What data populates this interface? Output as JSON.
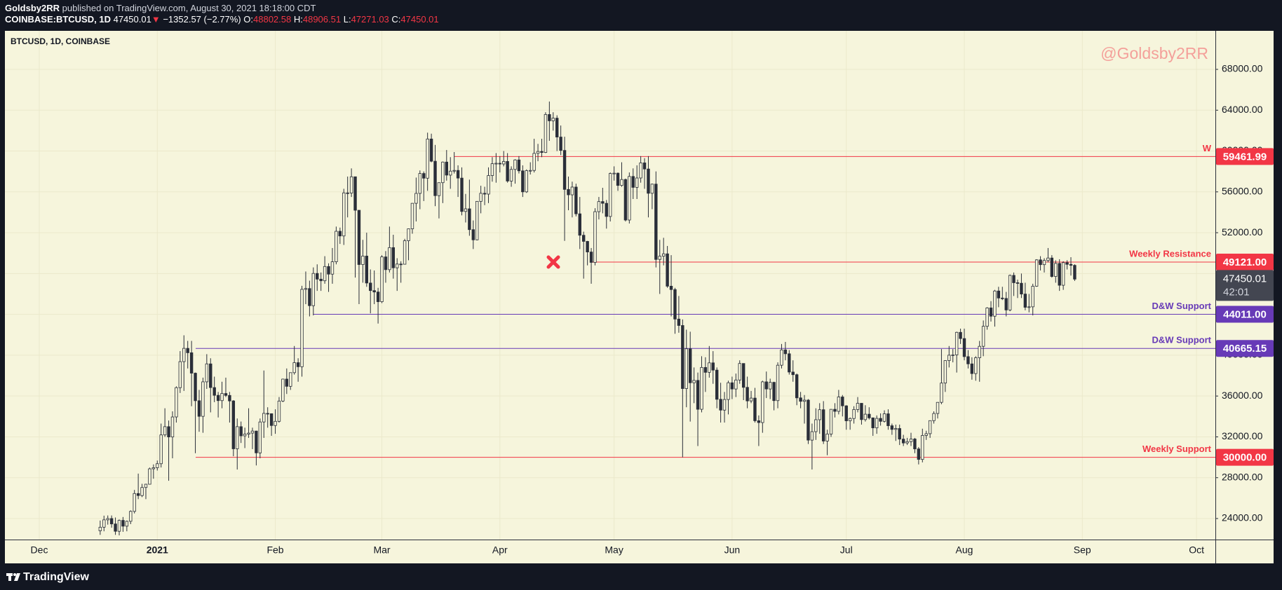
{
  "header": {
    "author": "Goldsby2RR",
    "published": "published on TradingView.com, August 30, 2021 18:18:00 CDT",
    "symbol": "COINBASE:BTCUSD, 1D",
    "last": "47450.01",
    "arrow": "▼",
    "change": "−1352.57 (−2.77%)",
    "ohlc": [
      {
        "key": "O:",
        "value": "48802.58"
      },
      {
        "key": "H:",
        "value": "48906.51"
      },
      {
        "key": "L:",
        "value": "47271.03"
      },
      {
        "key": "C:",
        "value": "47450.01"
      }
    ]
  },
  "footer": {
    "brand": "TradingView"
  },
  "chart_data": {
    "type": "candlestick",
    "legend": "BTCUSD, 1D, COINBASE",
    "watermark": "@Goldsby2RR",
    "countdown": "42:01",
    "up_color": "#f6f5dc",
    "down_color": "#2a2e39",
    "wick_color": "#2a2e39",
    "grid": true,
    "ylim": [
      21940,
      71775
    ],
    "yticks": [
      {
        "value": 24000,
        "label": "24000.00"
      },
      {
        "value": 28000,
        "label": "28000.00"
      },
      {
        "value": 32000,
        "label": "32000.00"
      },
      {
        "value": 36000,
        "label": "36000.00"
      },
      {
        "value": 40000,
        "label": "40000.00"
      },
      {
        "value": 44000,
        "label": "44000.00"
      },
      {
        "value": 48000,
        "label": "48000.00"
      },
      {
        "value": 52000,
        "label": "52000.00"
      },
      {
        "value": 56000,
        "label": "56000.00"
      },
      {
        "value": 60000,
        "label": "60000.00"
      },
      {
        "value": 64000,
        "label": "64000.00"
      },
      {
        "value": 68000,
        "label": "68000.00"
      }
    ],
    "xtick_labels": [
      "Dec",
      "2021",
      "Feb",
      "Mar",
      "Apr",
      "May",
      "Jun",
      "Jul",
      "Aug",
      "Sep",
      "Oct"
    ],
    "levels": [
      {
        "value": 59461.99,
        "label": "59461.99",
        "text": "W",
        "color": "#f23645"
      },
      {
        "value": 49121,
        "label": "49121.00",
        "text": "Weekly Resistance",
        "color": "#f23645"
      },
      {
        "value": 44011,
        "label": "44011.00",
        "text": "D&W Support",
        "color": "#673ab7"
      },
      {
        "value": 40665.15,
        "label": "40665.15",
        "text": "D&W Support",
        "color": "#673ab7"
      },
      {
        "value": 30000,
        "label": "30000.00",
        "text": "Weekly Support",
        "color": "#f23645"
      }
    ],
    "open": [
      22800,
      23150,
      23870,
      24000,
      23470,
      22750,
      23820,
      23250,
      23730,
      24700,
      26450,
      26250,
      27040,
      27360,
      28870,
      28980,
      29370,
      32190,
      33000,
      31990,
      33950,
      36820,
      39370,
      40670,
      40240,
      38240,
      35540,
      34010,
      37390,
      39150,
      36830,
      36070,
      35550,
      36250,
      36060,
      35520,
      30830,
      33000,
      32100,
      32270,
      32370,
      32570,
      30430,
      33460,
      34300,
      34270,
      33110,
      33520,
      35510,
      37660,
      36950,
      38290,
      39270,
      38870,
      46450,
      46530,
      44850,
      48010,
      47450,
      47290,
      48690,
      47940,
      49150,
      52140,
      51680,
      55900,
      55880,
      57480,
      54200,
      48880,
      49710,
      47070,
      46330,
      46190,
      45240,
      49630,
      48380,
      50540,
      48560,
      48930,
      48910,
      51210,
      52380,
      54880,
      55850,
      57800,
      57340,
      61180,
      59000,
      55630,
      56900,
      58920,
      57640,
      58030,
      58100,
      57350,
      54080,
      54340,
      52300,
      51300,
      55070,
      55860,
      55780,
      57600,
      58760,
      58800,
      58730,
      58980,
      57060,
      58200,
      59130,
      58060,
      56000,
      58080,
      58100,
      59770,
      59960,
      59860,
      63580,
      62960,
      63220,
      61370,
      60060,
      56240,
      55710,
      56470,
      53850,
      51750,
      51150,
      50110,
      49090,
      54060,
      55050,
      54880,
      53590,
      57800,
      57830,
      56630,
      57210,
      53240,
      57510,
      56440,
      57360,
      58840,
      58240,
      55860,
      56760,
      49380,
      49700,
      49930,
      46760,
      46430,
      43540,
      42910,
      36730,
      40630,
      37300,
      37530,
      34700,
      38800,
      38320,
      39250,
      38540,
      35680,
      34620,
      35660,
      37300,
      36690,
      37570,
      39190,
      36850,
      35520,
      35800,
      33580,
      33400,
      37390,
      36690,
      37340,
      35550,
      39020,
      40520,
      40140,
      38350,
      38090,
      35820,
      35480,
      35600,
      31680,
      32510,
      33680,
      34660,
      31590,
      32280,
      34700,
      34500,
      35910,
      35040,
      33570,
      33800,
      34680,
      35290,
      33690,
      34220,
      33860,
      32880,
      33810,
      33520,
      34260,
      33090,
      32730,
      32820,
      31780,
      31400,
      31530,
      31790,
      30820,
      29790,
      32140,
      32310,
      33590,
      34290,
      35380,
      37270,
      39470,
      40000,
      40030,
      42240,
      41630,
      39860,
      39150,
      38200,
      39750,
      40870,
      42830,
      44630,
      43820,
      46290,
      45600,
      45560,
      44430,
      47820,
      47100,
      47050,
      45990,
      44690,
      44740,
      46760,
      49340,
      48870,
      49280,
      49520,
      47710,
      48990,
      46850,
      49070,
      48900,
      48802.58
    ],
    "high": [
      23800,
      24280,
      24300,
      24300,
      24100,
      23900,
      24150,
      23800,
      24800,
      26800,
      28400,
      27400,
      27400,
      28990,
      29300,
      29680,
      33300,
      34800,
      33600,
      34500,
      36950,
      40400,
      41950,
      41400,
      41400,
      38300,
      36600,
      37800,
      40100,
      39700,
      37900,
      36400,
      37400,
      37800,
      36400,
      35600,
      33800,
      33500,
      32900,
      34800,
      32900,
      32600,
      33800,
      38500,
      34900,
      34300,
      34700,
      35900,
      37700,
      38700,
      38300,
      40900,
      39700,
      46800,
      48200,
      47300,
      48600,
      48900,
      48100,
      49700,
      49000,
      50500,
      52600,
      52500,
      56300,
      57500,
      58300,
      57500,
      54200,
      51300,
      52000,
      48400,
      48300,
      46600,
      49800,
      50200,
      52600,
      51800,
      49500,
      49200,
      51400,
      52400,
      54900,
      57400,
      58100,
      58000,
      61800,
      61700,
      60600,
      56900,
      58970,
      60100,
      59400,
      59900,
      58600,
      58400,
      55800,
      57200,
      53200,
      55100,
      56600,
      56500,
      58400,
      59400,
      59800,
      59500,
      60000,
      59800,
      58500,
      59200,
      59500,
      58600,
      58200,
      58900,
      61200,
      60700,
      61200,
      63800,
      64850,
      63800,
      63500,
      62500,
      61400,
      57500,
      57000,
      56800,
      55500,
      52100,
      51200,
      50500,
      54400,
      55500,
      56400,
      55200,
      57900,
      58500,
      57900,
      58900,
      57300,
      57900,
      58300,
      58600,
      59500,
      59300,
      59500,
      56800,
      58000,
      51300,
      51500,
      50700,
      49800,
      46600,
      45800,
      43500,
      42500,
      42300,
      38800,
      38300,
      39900,
      39800,
      40900,
      40400,
      38800,
      37300,
      36400,
      37500,
      37900,
      38200,
      39500,
      39200,
      37900,
      36500,
      36800,
      34100,
      37500,
      38400,
      37700,
      37400,
      39300,
      41100,
      41300,
      40500,
      39500,
      38200,
      36400,
      36100,
      35700,
      33300,
      34800,
      35300,
      35500,
      32700,
      34700,
      35300,
      36600,
      36100,
      35100,
      33900,
      35000,
      35900,
      35300,
      35100,
      34900,
      33900,
      34100,
      34300,
      34600,
      34700,
      33300,
      33200,
      33200,
      32200,
      31900,
      32400,
      31900,
      31000,
      32800,
      32600,
      33600,
      34500,
      35400,
      40600,
      39500,
      40900,
      40600,
      42300,
      42600,
      42600,
      40500,
      39800,
      39900,
      41400,
      43400,
      44700,
      45300,
      46400,
      46700,
      46700,
      46200,
      47900,
      48100,
      47400,
      48000,
      47100,
      46000,
      47000,
      49400,
      49700,
      49500,
      50500,
      49800,
      49300,
      49400,
      49200,
      49300,
      49600,
      48906.51
    ],
    "low": [
      22400,
      22750,
      23400,
      23100,
      22400,
      22350,
      22700,
      22750,
      23450,
      24500,
      25900,
      26100,
      25900,
      27330,
      27900,
      28700,
      29000,
      32000,
      27700,
      29900,
      33400,
      36300,
      36500,
      38700,
      35000,
      30400,
      32500,
      32400,
      36700,
      34400,
      35400,
      33900,
      34800,
      35900,
      33400,
      30100,
      28800,
      31400,
      30900,
      31900,
      30800,
      29200,
      29900,
      31900,
      32900,
      32100,
      32300,
      33400,
      35400,
      36200,
      36600,
      38100,
      37400,
      37900,
      45000,
      43800,
      43900,
      46300,
      46300,
      47000,
      46200,
      47000,
      48900,
      50900,
      50800,
      53500,
      55500,
      47600,
      45000,
      47100,
      46700,
      44100,
      45000,
      43100,
      45100,
      47100,
      48100,
      47500,
      46300,
      47100,
      48900,
      49300,
      51900,
      53100,
      54300,
      55100,
      56100,
      58900,
      54600,
      53400,
      54900,
      57100,
      56300,
      57800,
      55500,
      53700,
      53000,
      51700,
      50400,
      51250,
      53900,
      54700,
      54900,
      57000,
      56900,
      57900,
      58500,
      56900,
      56500,
      56800,
      57800,
      55500,
      55900,
      57700,
      57900,
      59000,
      59400,
      59800,
      61000,
      62000,
      60000,
      59600,
      51200,
      54200,
      53500,
      53600,
      50400,
      47500,
      48800,
      47000,
      48800,
      53300,
      53900,
      52400,
      53100,
      57100,
      56100,
      56500,
      53100,
      52900,
      55300,
      55300,
      56900,
      56300,
      53500,
      54300,
      48600,
      46000,
      48800,
      46600,
      43800,
      42100,
      42200,
      30000,
      34900,
      33500,
      35300,
      31100,
      34400,
      36400,
      37800,
      37200,
      34800,
      33400,
      33400,
      34200,
      35700,
      35900,
      37200,
      35600,
      34800,
      35300,
      33400,
      31100,
      32400,
      35800,
      35700,
      34600,
      34800,
      38700,
      39500,
      38100,
      37400,
      35100,
      34800,
      33300,
      31300,
      28800,
      31700,
      32300,
      31300,
      30200,
      32000,
      33900,
      34200,
      34000,
      32700,
      32700,
      33300,
      34400,
      33200,
      33500,
      33700,
      32100,
      32300,
      33100,
      33400,
      32700,
      32200,
      31600,
      31200,
      31100,
      31200,
      31100,
      30400,
      29300,
      29500,
      31700,
      31900,
      33300,
      33800,
      35200,
      36400,
      38800,
      39300,
      38300,
      41100,
      39500,
      38700,
      37600,
      37500,
      37400,
      39900,
      42500,
      43300,
      42800,
      44700,
      45400,
      43800,
      44300,
      45800,
      45600,
      45600,
      44400,
      44200,
      43900,
      46700,
      48300,
      48100,
      49100,
      47600,
      47100,
      46300,
      46400,
      48400,
      47800,
      47271.03
    ],
    "close": [
      23150,
      23870,
      24000,
      23470,
      22750,
      23820,
      23250,
      23730,
      24700,
      26450,
      26250,
      27040,
      27360,
      28870,
      28980,
      29370,
      32190,
      33000,
      31990,
      33950,
      36820,
      39370,
      40670,
      40240,
      38240,
      35540,
      34010,
      37390,
      39150,
      36830,
      36070,
      35550,
      36250,
      36060,
      35520,
      30830,
      33000,
      32100,
      32270,
      32370,
      32570,
      30430,
      33460,
      34300,
      34270,
      33110,
      33520,
      35510,
      37660,
      36950,
      38290,
      39270,
      38870,
      46450,
      46530,
      44850,
      48010,
      47450,
      47290,
      48690,
      47940,
      49150,
      52140,
      51680,
      55900,
      55880,
      57480,
      54200,
      48880,
      49710,
      47070,
      46330,
      46190,
      45240,
      49630,
      48380,
      50540,
      48560,
      48930,
      48910,
      51210,
      52380,
      54880,
      55850,
      57800,
      57340,
      61180,
      59000,
      55630,
      56900,
      58920,
      57640,
      58030,
      58100,
      57350,
      54080,
      54340,
      52300,
      51300,
      55070,
      55860,
      55780,
      57600,
      58760,
      58800,
      58730,
      58980,
      57060,
      58200,
      59130,
      58060,
      56000,
      58080,
      58100,
      59770,
      59960,
      59860,
      63580,
      62960,
      63220,
      61370,
      60060,
      56240,
      55710,
      56470,
      53850,
      51750,
      51150,
      50110,
      49090,
      54060,
      55050,
      54880,
      53590,
      57800,
      57830,
      56630,
      57210,
      53240,
      57510,
      56440,
      57360,
      58840,
      58240,
      55860,
      56760,
      49380,
      49700,
      49930,
      46760,
      46430,
      43540,
      42910,
      36730,
      40630,
      37300,
      37530,
      34700,
      38800,
      38320,
      39250,
      38540,
      35680,
      34620,
      35660,
      37300,
      36690,
      37570,
      39190,
      36850,
      35520,
      35800,
      33580,
      33400,
      37390,
      36690,
      37340,
      35550,
      39020,
      40520,
      40140,
      38350,
      38090,
      35820,
      35480,
      35600,
      31680,
      32510,
      33680,
      34660,
      31590,
      32280,
      34700,
      34500,
      35910,
      35040,
      33570,
      33800,
      34680,
      35290,
      33690,
      34220,
      33860,
      32880,
      33810,
      33520,
      34260,
      33090,
      32730,
      32820,
      31780,
      31400,
      31530,
      31790,
      30820,
      29790,
      32140,
      32310,
      33590,
      34290,
      35380,
      37270,
      39470,
      40000,
      40030,
      42240,
      41630,
      39860,
      39150,
      38200,
      39750,
      40870,
      42830,
      44630,
      43820,
      46290,
      45600,
      45560,
      44430,
      47820,
      47100,
      47050,
      45990,
      44690,
      44740,
      46760,
      49340,
      48870,
      49280,
      49520,
      47710,
      48990,
      46850,
      49070,
      48900,
      48802.58,
      47450.01
    ]
  }
}
